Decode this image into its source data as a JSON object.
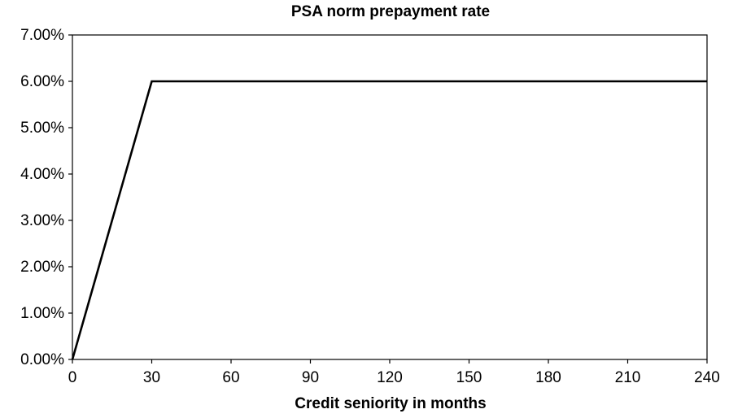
{
  "chart_data": {
    "type": "line",
    "title": "PSA norm prepayment rate",
    "xlabel": "Credit seniority in months",
    "ylabel": "",
    "xlim": [
      0,
      240
    ],
    "ylim": [
      0,
      0.07
    ],
    "x_ticks": [
      0,
      30,
      60,
      90,
      120,
      150,
      180,
      210,
      240
    ],
    "y_ticks": [
      0,
      0.01,
      0.02,
      0.03,
      0.04,
      0.05,
      0.06,
      0.07
    ],
    "x_tick_labels": [
      "0",
      "30",
      "60",
      "90",
      "120",
      "150",
      "180",
      "210",
      "240"
    ],
    "y_tick_labels": [
      "0.00%",
      "1.00%",
      "2.00%",
      "3.00%",
      "4.00%",
      "5.00%",
      "6.00%",
      "7.00%"
    ],
    "grid": false,
    "legend": "none",
    "series": [
      {
        "x": [
          0,
          30,
          240
        ],
        "y": [
          0,
          0.06,
          0.06
        ],
        "color": "#000000"
      }
    ]
  }
}
